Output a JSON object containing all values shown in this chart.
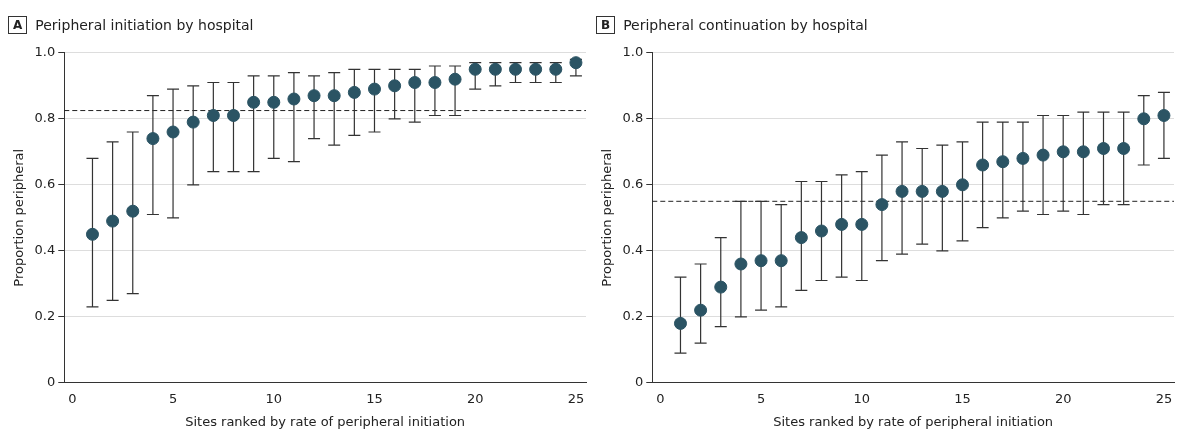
{
  "chart_data": [
    {
      "type": "scatter",
      "title": "Peripheral initiation by hospital",
      "annotations": [
        "A"
      ],
      "xlabel": "Sites ranked by rate of peripheral initiation",
      "ylabel": "Proportion peripheral",
      "color": "#2b5464",
      "marker": "circle",
      "grid": "y",
      "x": [
        1,
        2,
        3,
        4,
        5,
        6,
        7,
        8,
        9,
        10,
        11,
        12,
        13,
        14,
        15,
        16,
        17,
        18,
        19,
        20,
        21,
        22,
        23,
        24,
        25
      ],
      "values": [
        0.45,
        0.49,
        0.52,
        0.74,
        0.76,
        0.79,
        0.81,
        0.81,
        0.85,
        0.85,
        0.86,
        0.87,
        0.87,
        0.88,
        0.89,
        0.9,
        0.91,
        0.91,
        0.92,
        0.95,
        0.95,
        0.95,
        0.95,
        0.95,
        0.97
      ],
      "errors": [
        [
          0.23,
          0.68
        ],
        [
          0.25,
          0.73
        ],
        [
          0.27,
          0.76
        ],
        [
          0.51,
          0.87
        ],
        [
          0.5,
          0.89
        ],
        [
          0.6,
          0.9
        ],
        [
          0.64,
          0.91
        ],
        [
          0.64,
          0.91
        ],
        [
          0.64,
          0.93
        ],
        [
          0.68,
          0.93
        ],
        [
          0.67,
          0.94
        ],
        [
          0.74,
          0.93
        ],
        [
          0.72,
          0.94
        ],
        [
          0.75,
          0.95
        ],
        [
          0.76,
          0.95
        ],
        [
          0.8,
          0.95
        ],
        [
          0.79,
          0.95
        ],
        [
          0.81,
          0.96
        ],
        [
          0.81,
          0.96
        ],
        [
          0.89,
          0.97
        ],
        [
          0.9,
          0.97
        ],
        [
          0.91,
          0.97
        ],
        [
          0.91,
          0.97
        ],
        [
          0.91,
          0.97
        ],
        [
          0.93,
          0.98
        ]
      ],
      "xlim": [
        -0.4,
        25.5
      ],
      "xticks": [
        0,
        5,
        10,
        15,
        20,
        25
      ],
      "ylim": [
        0,
        1
      ],
      "yticks": [
        0,
        0.2,
        0.4,
        0.6,
        0.8,
        {
          "value": 1,
          "label": "1.0"
        }
      ],
      "ref_lines": [
        {
          "axis": "y",
          "value": 0.825,
          "line_style": "dashed"
        }
      ]
    },
    {
      "type": "scatter",
      "title": "Peripheral continuation by hospital",
      "annotations": [
        "B"
      ],
      "xlabel": "Sites ranked by rate of peripheral initiation",
      "ylabel": "Proportion peripheral",
      "color": "#2b5464",
      "marker": "circle",
      "grid": "y",
      "x": [
        1,
        2,
        3,
        4,
        5,
        6,
        7,
        8,
        9,
        10,
        11,
        12,
        13,
        14,
        15,
        16,
        17,
        18,
        19,
        20,
        21,
        22,
        23,
        24,
        25
      ],
      "values": [
        0.18,
        0.22,
        0.29,
        0.36,
        0.37,
        0.37,
        0.44,
        0.46,
        0.48,
        0.48,
        0.54,
        0.58,
        0.58,
        0.58,
        0.6,
        0.66,
        0.67,
        0.68,
        0.69,
        0.7,
        0.7,
        0.71,
        0.71,
        0.8,
        0.81
      ],
      "errors": [
        [
          0.09,
          0.32
        ],
        [
          0.12,
          0.36
        ],
        [
          0.17,
          0.44
        ],
        [
          0.2,
          0.55
        ],
        [
          0.22,
          0.55
        ],
        [
          0.23,
          0.54
        ],
        [
          0.28,
          0.61
        ],
        [
          0.31,
          0.61
        ],
        [
          0.32,
          0.63
        ],
        [
          0.31,
          0.64
        ],
        [
          0.37,
          0.69
        ],
        [
          0.39,
          0.73
        ],
        [
          0.42,
          0.71
        ],
        [
          0.4,
          0.72
        ],
        [
          0.43,
          0.73
        ],
        [
          0.47,
          0.79
        ],
        [
          0.5,
          0.79
        ],
        [
          0.52,
          0.79
        ],
        [
          0.51,
          0.81
        ],
        [
          0.52,
          0.81
        ],
        [
          0.51,
          0.82
        ],
        [
          0.54,
          0.82
        ],
        [
          0.54,
          0.82
        ],
        [
          0.66,
          0.87
        ],
        [
          0.68,
          0.88
        ]
      ],
      "xlim": [
        -0.4,
        25.5
      ],
      "xticks": [
        0,
        5,
        10,
        15,
        20,
        25
      ],
      "ylim": [
        0,
        1
      ],
      "yticks": [
        0,
        0.2,
        0.4,
        0.6,
        0.8,
        {
          "value": 1,
          "label": "1.0"
        }
      ],
      "ref_lines": [
        {
          "axis": "y",
          "value": 0.55,
          "line_style": "dashed"
        }
      ]
    }
  ]
}
